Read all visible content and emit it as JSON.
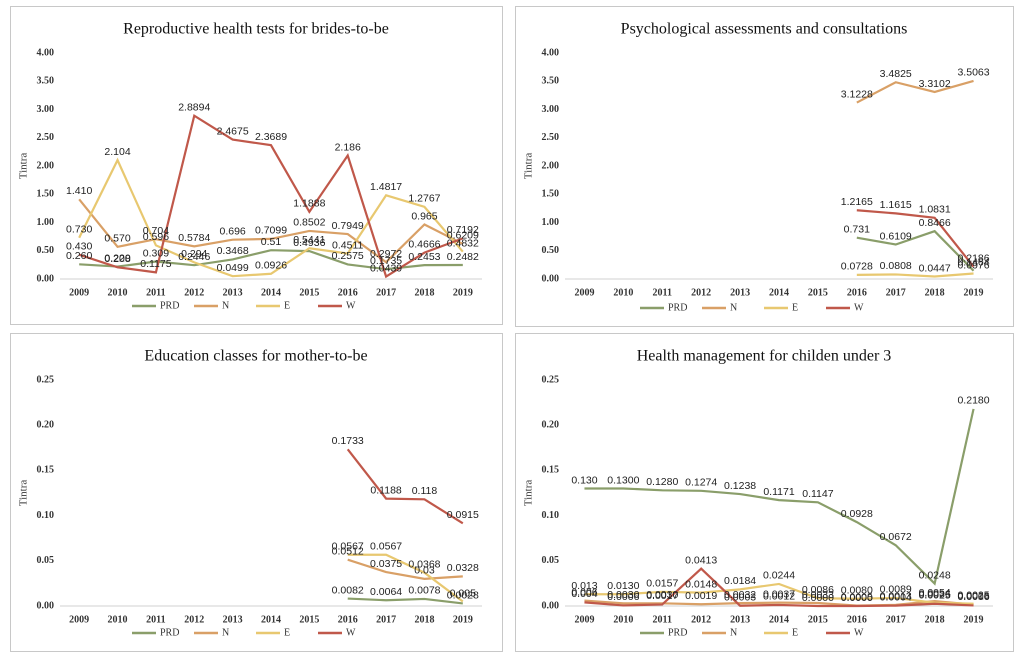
{
  "chart_data": [
    {
      "type": "line",
      "title": "Reproductive health tests for brides-to-be",
      "ylabel": "Tintra",
      "categories": [
        "2009",
        "2010",
        "2011",
        "2012",
        "2013",
        "2014",
        "2015",
        "2016",
        "2017",
        "2018",
        "2019"
      ],
      "ylim": [
        0,
        4
      ],
      "yticks": [
        {
          "value": 0,
          "label": "0.00"
        },
        {
          "value": 0.5,
          "label": "0.50"
        },
        {
          "value": 1,
          "label": "1.00"
        },
        {
          "value": 1.5,
          "label": "1.50"
        },
        {
          "value": 2,
          "label": "2.00"
        },
        {
          "value": 2.5,
          "label": "2.50"
        },
        {
          "value": 3,
          "label": "3.00"
        },
        {
          "value": 3.5,
          "label": "3.50"
        },
        {
          "value": 4,
          "label": "4.00"
        }
      ],
      "series": [
        {
          "name": "PRD",
          "color": "#8a9e6a",
          "values": [
            0.26,
            0.22,
            0.309,
            0.2446,
            0.3468,
            0.51,
            0.4936,
            0.2575,
            0.1735,
            0.2453,
            0.2482
          ],
          "value_labels": [
            "0.260",
            "0.220",
            "0.309",
            "0.2446",
            "0.3468",
            "0.51",
            "0.4936",
            "0.2575",
            "0.1735",
            "0.2453",
            "0.2482"
          ]
        },
        {
          "name": "N",
          "color": "#d9a066",
          "values": [
            1.41,
            0.57,
            0.704,
            0.5784,
            0.696,
            0.7099,
            0.8502,
            0.7949,
            0.2972,
            0.965,
            0.6209
          ],
          "value_labels": [
            "1.410",
            "0.570",
            "0.704",
            "0.5784",
            "0.696",
            "0.7099",
            "0.8502",
            "0.7949",
            "0.2972",
            "0.965",
            "0.6209"
          ]
        },
        {
          "name": "E",
          "color": "#e8c870",
          "values": [
            0.73,
            2.104,
            0.596,
            0.294,
            0.0499,
            0.0926,
            0.5441,
            0.4511,
            1.4817,
            1.2767,
            0.4832
          ],
          "value_labels": [
            "0.730",
            "2.104",
            "0.596",
            "0.294",
            "0.0499",
            "0.0926",
            "0.5441",
            "0.4511",
            "1.4817",
            "1.2767",
            "0.4832"
          ]
        },
        {
          "name": "W",
          "color": "#c0584a",
          "values": [
            0.43,
            0.208,
            0.1175,
            2.8894,
            2.4675,
            2.3689,
            1.1888,
            2.186,
            0.0439,
            0.4666,
            0.7192
          ],
          "value_labels": [
            "0.430",
            "0.208",
            "0.1175",
            "2.8894",
            "2.4675",
            "2.3689",
            "1.1888",
            "2.186",
            "0.0439",
            "0.4666",
            "0.7192"
          ]
        }
      ]
    },
    {
      "type": "line",
      "title": "Psychological assessments and consultations",
      "ylabel": "Tintra",
      "categories": [
        "2009",
        "2010",
        "2011",
        "2012",
        "2013",
        "2014",
        "2015",
        "2016",
        "2017",
        "2018",
        "2019"
      ],
      "ylim": [
        0,
        4
      ],
      "yticks": [
        {
          "value": 0,
          "label": "0.00"
        },
        {
          "value": 0.5,
          "label": "0.50"
        },
        {
          "value": 1,
          "label": "1.00"
        },
        {
          "value": 1.5,
          "label": "1.50"
        },
        {
          "value": 2,
          "label": "2.00"
        },
        {
          "value": 2.5,
          "label": "2.50"
        },
        {
          "value": 3,
          "label": "3.00"
        },
        {
          "value": 3.5,
          "label": "3.50"
        },
        {
          "value": 4,
          "label": "4.00"
        }
      ],
      "series": [
        {
          "name": "PRD",
          "color": "#8a9e6a",
          "values": [
            null,
            null,
            null,
            null,
            null,
            null,
            null,
            0.731,
            0.6109,
            0.8466,
            0.1464
          ],
          "value_labels": [
            null,
            null,
            null,
            null,
            null,
            null,
            null,
            "0.731",
            "0.6109",
            "0.8466",
            "0.1464"
          ]
        },
        {
          "name": "N",
          "color": "#d9a066",
          "values": [
            null,
            null,
            null,
            null,
            null,
            null,
            null,
            3.1228,
            3.4825,
            3.3102,
            3.5063
          ],
          "value_labels": [
            null,
            null,
            null,
            null,
            null,
            null,
            null,
            "3.1228",
            "3.4825",
            "3.3102",
            "3.5063"
          ]
        },
        {
          "name": "E",
          "color": "#e8c870",
          "values": [
            null,
            null,
            null,
            null,
            null,
            null,
            null,
            0.0728,
            0.0808,
            0.0447,
            0.0976
          ],
          "value_labels": [
            null,
            null,
            null,
            null,
            null,
            null,
            null,
            "0.0728",
            "0.0808",
            "0.0447",
            "0.0976"
          ]
        },
        {
          "name": "W",
          "color": "#c0584a",
          "values": [
            null,
            null,
            null,
            null,
            null,
            null,
            null,
            1.2165,
            1.1615,
            1.0831,
            0.2186
          ],
          "value_labels": [
            null,
            null,
            null,
            null,
            null,
            null,
            null,
            "1.2165",
            "1.1615",
            "1.0831",
            "0.2186"
          ]
        }
      ]
    },
    {
      "type": "line",
      "title": "Education classes for mother-to-be",
      "ylabel": "Tintra",
      "categories": [
        "2009",
        "2010",
        "2011",
        "2012",
        "2013",
        "2014",
        "2015",
        "2016",
        "2017",
        "2018",
        "2019"
      ],
      "ylim": [
        0,
        0.25
      ],
      "yticks": [
        {
          "value": 0,
          "label": "0.00"
        },
        {
          "value": 0.05,
          "label": "0.05"
        },
        {
          "value": 0.1,
          "label": "0.10"
        },
        {
          "value": 0.15,
          "label": "0.15"
        },
        {
          "value": 0.2,
          "label": "0.20"
        },
        {
          "value": 0.25,
          "label": "0.25"
        }
      ],
      "series": [
        {
          "name": "PRD",
          "color": "#8a9e6a",
          "values": [
            null,
            null,
            null,
            null,
            null,
            null,
            null,
            0.0082,
            0.0064,
            0.0078,
            0.0028
          ],
          "value_labels": [
            null,
            null,
            null,
            null,
            null,
            null,
            null,
            "0.0082",
            "0.0064",
            "0.0078",
            "0.0028"
          ]
        },
        {
          "name": "N",
          "color": "#d9a066",
          "values": [
            null,
            null,
            null,
            null,
            null,
            null,
            null,
            0.0512,
            0.0375,
            0.03,
            0.0328
          ],
          "value_labels": [
            null,
            null,
            null,
            null,
            null,
            null,
            null,
            "0.0512",
            "0.0375",
            "0.03",
            "0.0328"
          ]
        },
        {
          "name": "E",
          "color": "#e8c870",
          "values": [
            null,
            null,
            null,
            null,
            null,
            null,
            null,
            0.0567,
            0.0567,
            0.0368,
            0.005
          ],
          "value_labels": [
            null,
            null,
            null,
            null,
            null,
            null,
            null,
            "0.0567",
            "0.0567",
            "0.0368",
            "0.005"
          ]
        },
        {
          "name": "W",
          "color": "#c0584a",
          "values": [
            null,
            null,
            null,
            null,
            null,
            null,
            null,
            0.1733,
            0.1188,
            0.118,
            0.0915
          ],
          "value_labels": [
            null,
            null,
            null,
            null,
            null,
            null,
            null,
            "0.1733",
            "0.1188",
            "0.118",
            "0.0915"
          ]
        }
      ]
    },
    {
      "type": "line",
      "title": "Health management for childen under 3",
      "ylabel": "Tintra",
      "categories": [
        "2009",
        "2010",
        "2011",
        "2012",
        "2013",
        "2014",
        "2015",
        "2016",
        "2017",
        "2018",
        "2019"
      ],
      "ylim": [
        0,
        0.25
      ],
      "yticks": [
        {
          "value": 0,
          "label": "0.00"
        },
        {
          "value": 0.05,
          "label": "0.05"
        },
        {
          "value": 0.1,
          "label": "0.10"
        },
        {
          "value": 0.15,
          "label": "0.15"
        },
        {
          "value": 0.2,
          "label": "0.20"
        },
        {
          "value": 0.25,
          "label": "0.25"
        }
      ],
      "series": [
        {
          "name": "PRD",
          "color": "#8a9e6a",
          "values": [
            0.13,
            0.13,
            0.128,
            0.1274,
            0.1238,
            0.1171,
            0.1147,
            0.0928,
            0.0672,
            0.0248,
            0.218
          ],
          "value_labels": [
            "0.130",
            "0.1300",
            "0.1280",
            "0.1274",
            "0.1238",
            "0.1171",
            "0.1147",
            "0.0928",
            "0.0672",
            "0.0248",
            "0.2180"
          ]
        },
        {
          "name": "N",
          "color": "#d9a066",
          "values": [
            0.006,
            0.003,
            0.003,
            0.0019,
            0.0032,
            0.0037,
            0.0033,
            0.0005,
            0.0013,
            0.0054,
            0.0016
          ],
          "value_labels": [
            "0.006",
            "0.0030",
            "0.0030",
            "0.0019",
            "0.0032",
            "0.0037",
            "0.0033",
            "0.0005",
            "0.0013",
            "0.0054",
            "0.0016"
          ]
        },
        {
          "name": "E",
          "color": "#e8c870",
          "values": [
            0.013,
            0.013,
            0.0157,
            0.0148,
            0.0184,
            0.0244,
            0.0086,
            0.008,
            0.0089,
            0.0036,
            0.0025
          ],
          "value_labels": [
            "0.013",
            "0.0130",
            "0.0157",
            "0.0148",
            "0.0184",
            "0.0244",
            "0.0086",
            "0.0080",
            "0.0089",
            "0.0036",
            "0.0025"
          ]
        },
        {
          "name": "W",
          "color": "#c0584a",
          "values": [
            0.004,
            0.0006,
            0.0017,
            0.0413,
            0.0003,
            0.0012,
            0,
            0,
            0.0004,
            0.0025,
            0.0006
          ],
          "value_labels": [
            "0.004",
            "0.0006",
            "0.0017",
            "0.0413",
            "0.0003",
            "0.0012",
            "0.0000",
            "0.0000",
            "0.0004",
            "0.0025",
            "0.0006"
          ]
        }
      ]
    }
  ]
}
